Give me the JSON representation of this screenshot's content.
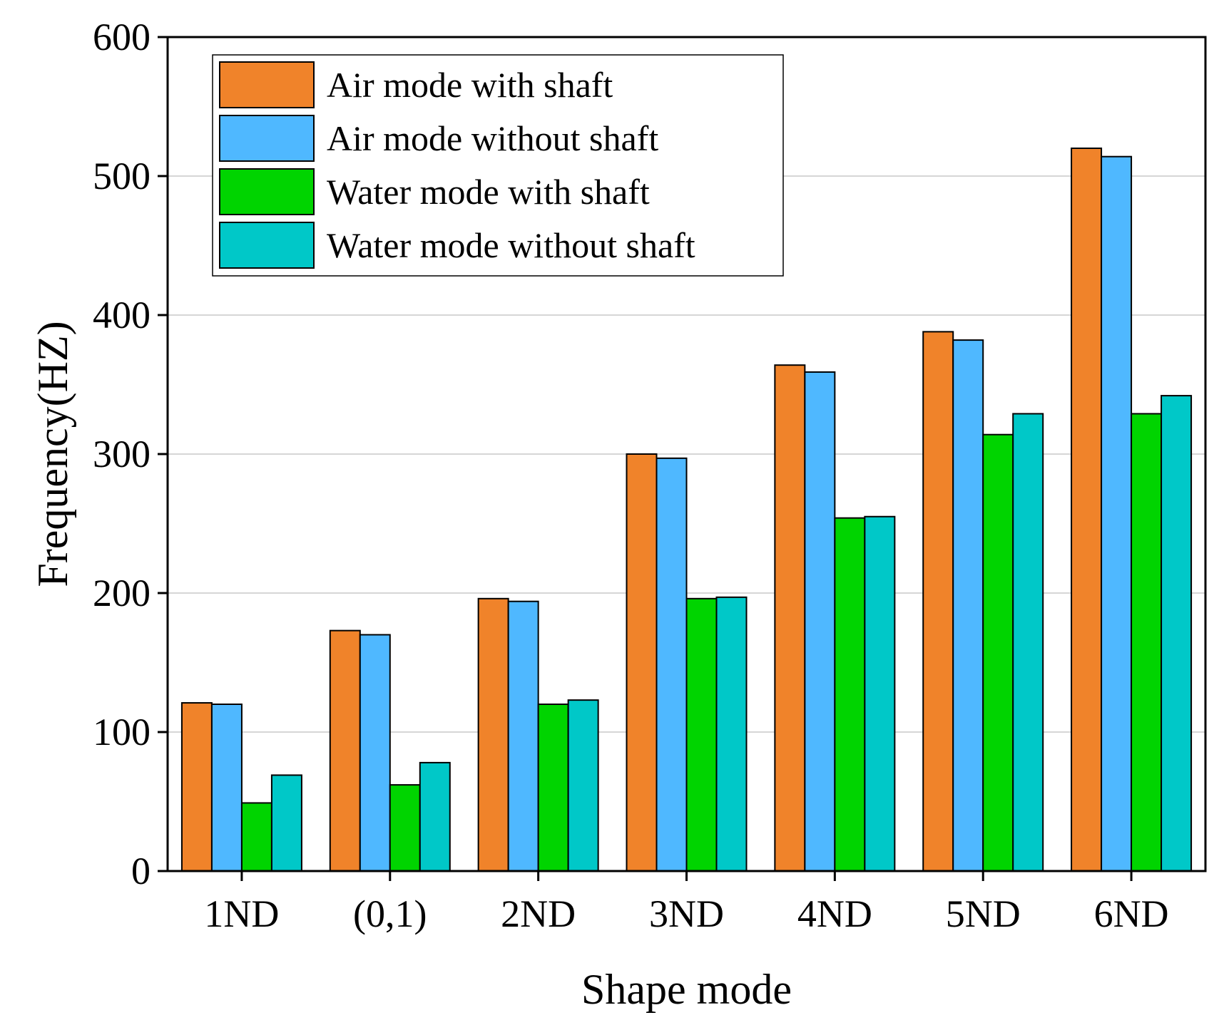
{
  "chart_data": {
    "type": "bar",
    "title": "",
    "xlabel": "Shape mode",
    "ylabel": "Frequency(HZ)",
    "ylim": [
      0,
      600
    ],
    "yticks": [
      "0",
      "100",
      "200",
      "300",
      "400",
      "500",
      "600"
    ],
    "grid": true,
    "legend_position": "top-left",
    "categories": [
      "1ND",
      "(0,1)",
      "2ND",
      "3ND",
      "4ND",
      "5ND",
      "6ND"
    ],
    "series": [
      {
        "name": "Air mode with shaft",
        "color": "#F0832A",
        "values": [
          121,
          173,
          196,
          300,
          364,
          388,
          520
        ]
      },
      {
        "name": "Air mode without shaft",
        "color": "#4FB8FF",
        "values": [
          120,
          170,
          194,
          297,
          359,
          382,
          514
        ]
      },
      {
        "name": "Water mode with shaft",
        "color": "#00D400",
        "values": [
          49,
          62,
          120,
          196,
          254,
          314,
          329
        ]
      },
      {
        "name": "Water mode without shaft",
        "color": "#00C8C8",
        "values": [
          69,
          78,
          123,
          197,
          255,
          329,
          342
        ]
      }
    ]
  }
}
